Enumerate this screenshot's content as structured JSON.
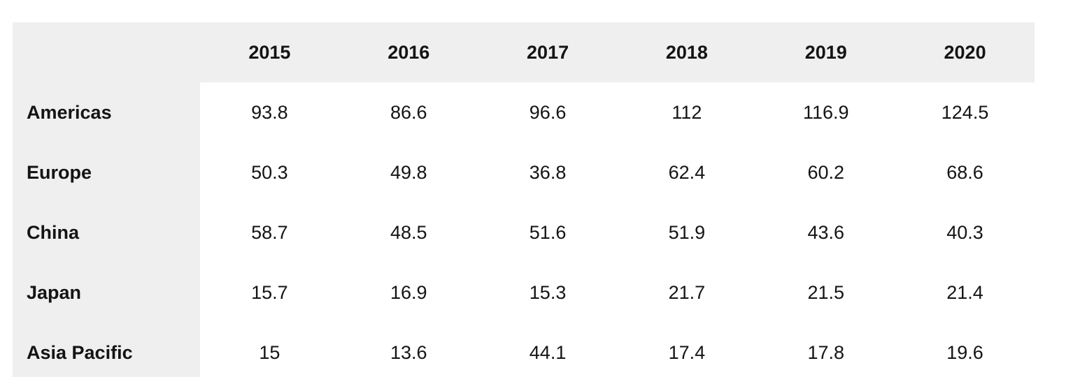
{
  "table": {
    "corner_label": "",
    "columns": [
      "2015",
      "2016",
      "2017",
      "2018",
      "2019",
      "2020"
    ],
    "rows": [
      {
        "label": "Americas",
        "values": [
          "93.8",
          "86.6",
          "96.6",
          "112",
          "116.9",
          "124.5"
        ]
      },
      {
        "label": "Europe",
        "values": [
          "50.3",
          "49.8",
          "36.8",
          "62.4",
          "60.2",
          "68.6"
        ]
      },
      {
        "label": "China",
        "values": [
          "58.7",
          "48.5",
          "51.6",
          "51.9",
          "43.6",
          "40.3"
        ]
      },
      {
        "label": "Japan",
        "values": [
          "15.7",
          "16.9",
          "15.3",
          "21.7",
          "21.5",
          "21.4"
        ]
      },
      {
        "label": "Asia Pacific",
        "values": [
          "15",
          "13.6",
          "44.1",
          "17.4",
          "17.8",
          "19.6"
        ]
      }
    ]
  },
  "colors": {
    "header_bg": "#efefef",
    "label_bg": "#efefef",
    "cell_bg": "#ffffff",
    "text": "#141414"
  },
  "chart_data": {
    "type": "table",
    "categories": [
      "2015",
      "2016",
      "2017",
      "2018",
      "2019",
      "2020"
    ],
    "series": [
      {
        "name": "Americas",
        "values": [
          93.8,
          86.6,
          96.6,
          112,
          116.9,
          124.5
        ]
      },
      {
        "name": "Europe",
        "values": [
          50.3,
          49.8,
          36.8,
          62.4,
          60.2,
          68.6
        ]
      },
      {
        "name": "China",
        "values": [
          58.7,
          48.5,
          51.6,
          51.9,
          43.6,
          40.3
        ]
      },
      {
        "name": "Japan",
        "values": [
          15.7,
          16.9,
          15.3,
          21.7,
          21.5,
          21.4
        ]
      },
      {
        "name": "Asia Pacific",
        "values": [
          15,
          13.6,
          44.1,
          17.4,
          17.8,
          19.6
        ]
      }
    ],
    "title": "",
    "xlabel": "",
    "ylabel": "",
    "legend_position": "none",
    "grid": false
  }
}
